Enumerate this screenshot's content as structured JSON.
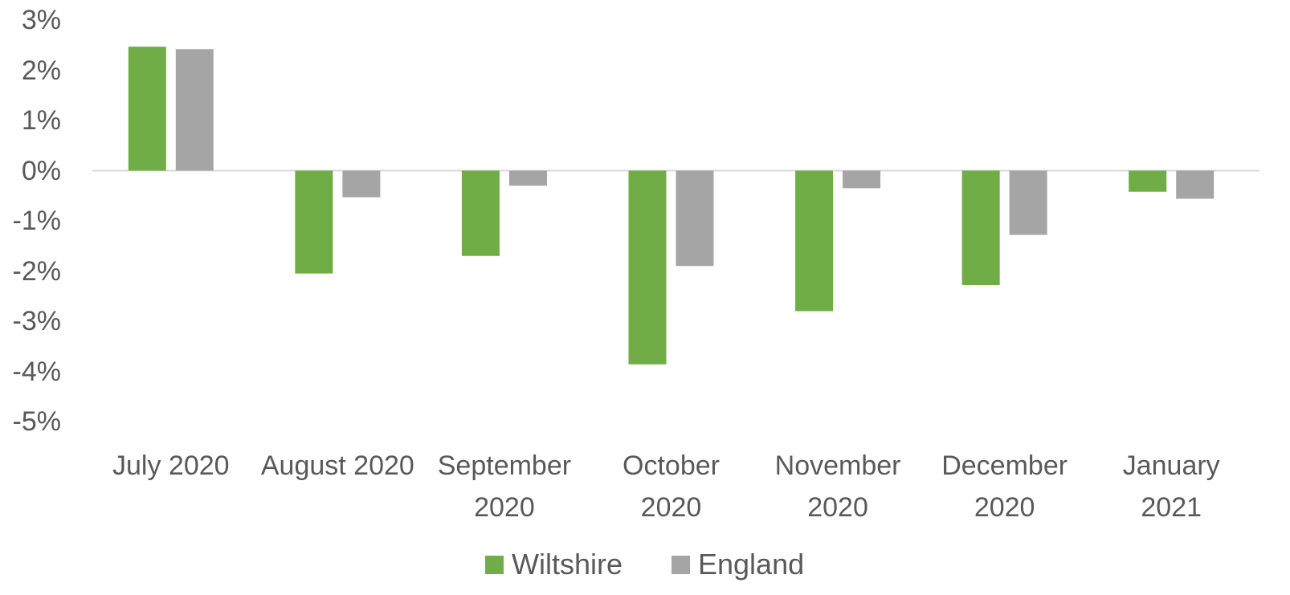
{
  "chart_data": {
    "type": "bar",
    "categories": [
      "July 2020",
      "August 2020",
      "September 2020",
      "October 2020",
      "November 2020",
      "December 2020",
      "January 2021"
    ],
    "series": [
      {
        "name": "Wiltshire",
        "color": "#70ad47",
        "values": [
          2.47,
          -2.05,
          -1.7,
          -3.86,
          -2.8,
          -2.28,
          -0.42
        ]
      },
      {
        "name": "England",
        "color": "#a5a5a5",
        "values": [
          2.42,
          -0.53,
          -0.3,
          -1.9,
          -0.35,
          -1.28,
          -0.56
        ]
      }
    ],
    "ylim": [
      -5,
      3
    ],
    "yticks": [
      {
        "value": 3,
        "label": "3%"
      },
      {
        "value": 2,
        "label": "2%"
      },
      {
        "value": 1,
        "label": "1%"
      },
      {
        "value": 0,
        "label": "0%"
      },
      {
        "value": -1,
        "label": "-1%"
      },
      {
        "value": -2,
        "label": "-2%"
      },
      {
        "value": -3,
        "label": "-3%"
      },
      {
        "value": -4,
        "label": "-4%"
      },
      {
        "value": -5,
        "label": "-5%"
      }
    ],
    "grid": false,
    "legend": "bottom"
  }
}
